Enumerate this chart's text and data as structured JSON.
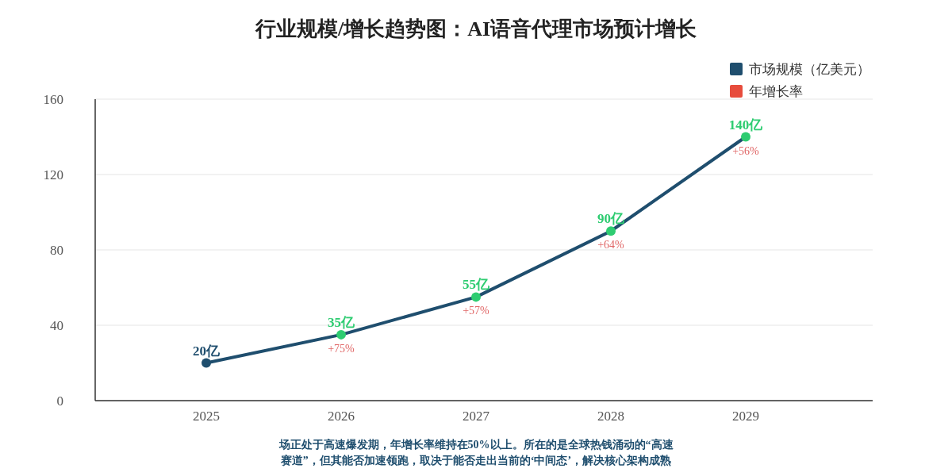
{
  "chart_data": {
    "type": "line",
    "title": "行业规模/增长趋势图：AI语音代理市场预计增长",
    "categories": [
      "2025",
      "2026",
      "2027",
      "2028",
      "2029"
    ],
    "series": [
      {
        "name": "市场规模（亿美元）",
        "color": "#1f4e6e",
        "colors": [
          "#1f4e6e",
          "#2ecc71",
          "#2ecc71",
          "#2ecc71",
          "#2ecc71"
        ],
        "values": [
          20,
          35,
          55,
          90,
          140
        ],
        "value_labels": [
          "20亿",
          "35亿",
          "55亿",
          "90亿",
          "140亿"
        ]
      },
      {
        "name": "年增长率",
        "color": "#e74c3c",
        "values": [
          null,
          null,
          null,
          null,
          null
        ]
      }
    ],
    "annotations": [
      {
        "text": "+75%",
        "x": "2026",
        "y": 35
      },
      {
        "text": "+57%",
        "x": "2027",
        "y": 55
      },
      {
        "text": "+64%",
        "x": "2028",
        "y": 90
      },
      {
        "text": "+56%",
        "x": "2029",
        "y": 140
      },
      "场正处于高速爆发期，年增长率维持在50%以上。所在的是全球热钱涌动的“高速赛道”，但其能否加速领跑，取决于能否走出当前的‘中间态’，解决核心架构成熟"
    ],
    "ylim": [
      0,
      160
    ],
    "yticks": [
      0,
      40,
      80,
      120,
      160
    ],
    "grid": "y",
    "legend": "top right",
    "marker": "circle",
    "line_style": "solid"
  }
}
